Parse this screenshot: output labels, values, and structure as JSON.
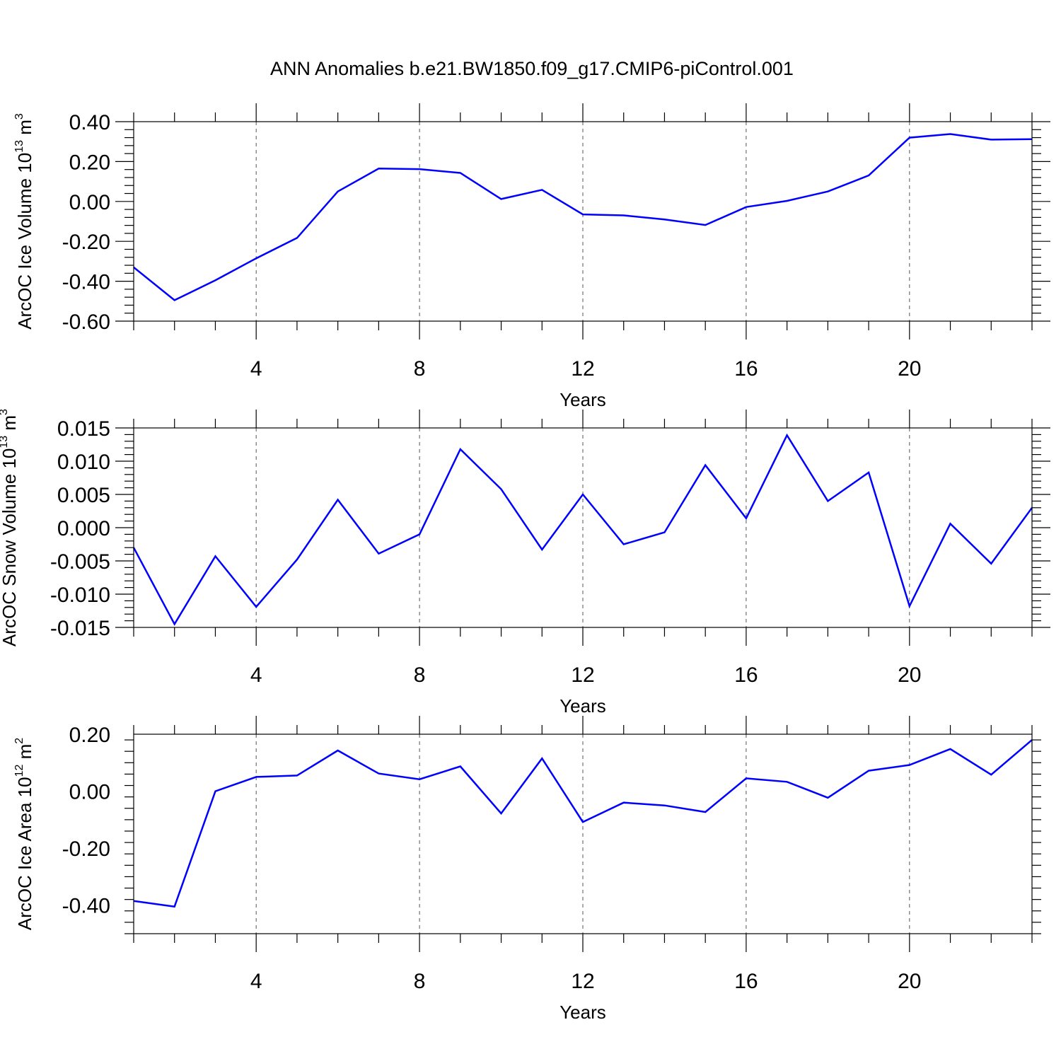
{
  "title": "ANN Anomalies b.e21.BW1850.f09_g17.CMIP6-piControl.001",
  "colors": {
    "series": "#0000ff",
    "grid": "#555555",
    "frame": "#000000"
  },
  "chart_data": [
    {
      "type": "line",
      "xlabel": "Years",
      "ylabel_text": "ArcOC Ice Volume 10",
      "ylabel_exp": "13",
      "ylabel_unit": " m",
      "ylabel_unit_exp": "3",
      "xlim": [
        1,
        23
      ],
      "ylim": [
        -0.6,
        0.4
      ],
      "xticks": [
        4,
        8,
        12,
        16,
        20
      ],
      "yticks": [
        -0.6,
        -0.4,
        -0.2,
        0.0,
        0.2,
        0.4
      ],
      "ytick_labels": [
        "-0.60",
        "-0.40",
        "-0.20",
        "0.00",
        "0.20",
        "0.40"
      ],
      "grid": "vertical dashed at major x ticks",
      "series": [
        {
          "x": [
            1,
            2,
            3,
            4,
            5,
            6,
            7,
            8,
            9,
            10,
            11,
            12,
            13,
            14,
            15,
            16,
            17,
            18,
            19,
            20,
            21,
            22,
            23
          ],
          "values": [
            -0.33,
            -0.495,
            -0.395,
            -0.285,
            -0.183,
            0.05,
            0.165,
            0.162,
            0.143,
            0.012,
            0.058,
            -0.065,
            -0.07,
            -0.09,
            -0.118,
            -0.028,
            0.003,
            0.05,
            0.13,
            0.32,
            0.338,
            0.31,
            0.312
          ]
        }
      ]
    },
    {
      "type": "line",
      "xlabel": "Years",
      "ylabel_text": "ArcOC Snow Volume 10",
      "ylabel_exp": "13",
      "ylabel_unit": " m",
      "ylabel_unit_exp": "3",
      "xlim": [
        1,
        23
      ],
      "ylim": [
        -0.015,
        0.015
      ],
      "xticks": [
        4,
        8,
        12,
        16,
        20
      ],
      "yticks": [
        -0.015,
        -0.01,
        -0.005,
        0.0,
        0.005,
        0.01,
        0.015
      ],
      "ytick_labels": [
        "-0.015",
        "-0.010",
        "-0.005",
        "0.000",
        "0.005",
        "0.010",
        "0.015"
      ],
      "grid": "vertical dashed at major x ticks",
      "series": [
        {
          "x": [
            1,
            2,
            3,
            4,
            5,
            6,
            7,
            8,
            9,
            10,
            11,
            12,
            13,
            14,
            15,
            16,
            17,
            18,
            19,
            20,
            21,
            22,
            23
          ],
          "values": [
            -0.003,
            -0.0145,
            -0.0043,
            -0.0119,
            -0.0048,
            0.0042,
            -0.0039,
            -0.001,
            0.0118,
            0.0058,
            -0.0033,
            0.005,
            -0.0025,
            -0.0007,
            0.0094,
            0.0014,
            0.0139,
            0.004,
            0.0083,
            -0.0118,
            0.0006,
            -0.0054,
            0.003
          ]
        }
      ]
    },
    {
      "type": "line",
      "xlabel": "Years",
      "ylabel_text": "ArcOC Ice Area 10",
      "ylabel_exp": "12",
      "ylabel_unit": " m",
      "ylabel_unit_exp": "2",
      "xlim": [
        1,
        23
      ],
      "ylim": [
        -0.5,
        0.2
      ],
      "xticks": [
        4,
        8,
        12,
        16,
        20
      ],
      "yticks": [
        -0.4,
        -0.2,
        0.0,
        0.2
      ],
      "ytick_labels": [
        "-0.40",
        "-0.20",
        "0.00",
        "0.20"
      ],
      "grid": "vertical dashed at major x ticks",
      "series": [
        {
          "x": [
            1,
            2,
            3,
            4,
            5,
            6,
            7,
            8,
            9,
            10,
            11,
            12,
            13,
            14,
            15,
            16,
            17,
            18,
            19,
            20,
            21,
            22,
            23
          ],
          "values": [
            -0.385,
            -0.405,
            0.0,
            0.05,
            0.055,
            0.143,
            0.062,
            0.042,
            0.087,
            -0.078,
            0.115,
            -0.108,
            -0.04,
            -0.05,
            -0.073,
            0.045,
            0.033,
            -0.023,
            0.072,
            0.092,
            0.148,
            0.058,
            0.18
          ]
        }
      ]
    }
  ]
}
